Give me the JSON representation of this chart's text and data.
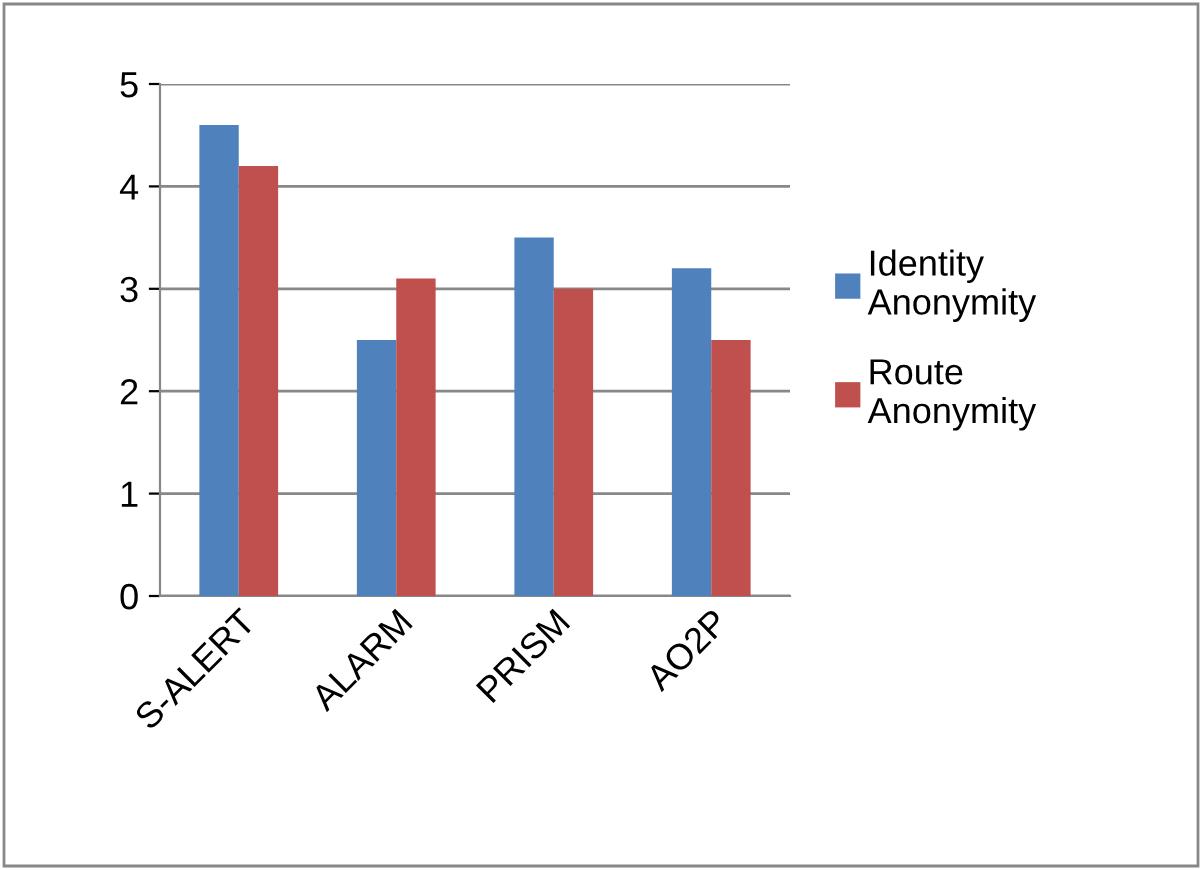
{
  "chart_data": {
    "type": "bar",
    "categories": [
      "S-ALERT",
      "ALARM",
      "PRISM",
      "AO2P"
    ],
    "series": [
      {
        "name": "Identity Anonymity",
        "color": "#4f81bd",
        "values": [
          4.6,
          2.5,
          3.5,
          3.2
        ]
      },
      {
        "name": "Route Anonymity",
        "color": "#c0504d",
        "values": [
          4.2,
          3.1,
          3.0,
          2.5
        ]
      }
    ],
    "ylim": [
      0,
      5
    ],
    "yticks": [
      0,
      1,
      2,
      3,
      4,
      5
    ],
    "grid": "y",
    "legend": "right"
  }
}
